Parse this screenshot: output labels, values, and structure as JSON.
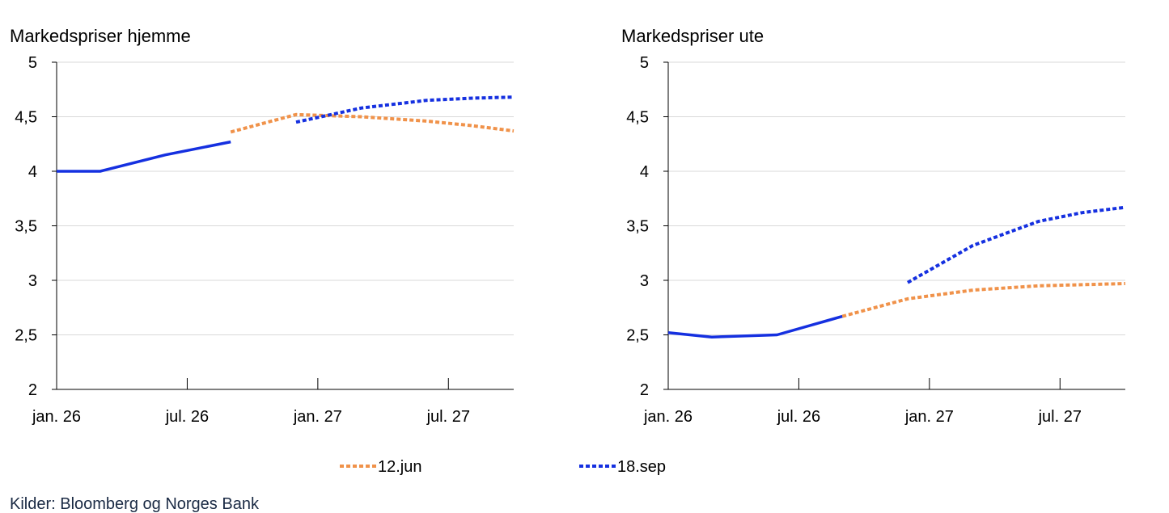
{
  "chart_data": [
    {
      "type": "line",
      "title": "Markedspriser hjemme",
      "x_ticks": [
        "jan. 26",
        "jul. 26",
        "jan. 27",
        "jul. 27"
      ],
      "y_ticks": [
        "5",
        "4,5",
        "4",
        "3,5",
        "3",
        "2,5",
        "2"
      ],
      "ylim": [
        2,
        5
      ],
      "xlim": [
        "2026-01",
        "2027-10"
      ],
      "grid": true,
      "series": [
        {
          "name": "",
          "style": "solid",
          "color": "#1530e0",
          "x": [
            "2026-01",
            "2026-03",
            "2026-06",
            "2026-09"
          ],
          "y": [
            4.0,
            4.0,
            4.15,
            4.27
          ]
        },
        {
          "name": "12.jun",
          "style": "dotted",
          "color": "#f0924a",
          "x": [
            "2026-09",
            "2026-12",
            "2027-03",
            "2027-06",
            "2027-08",
            "2027-10"
          ],
          "y": [
            4.36,
            4.52,
            4.5,
            4.46,
            4.42,
            4.37
          ]
        },
        {
          "name": "18.sep",
          "style": "dotted",
          "color": "#1530e0",
          "x": [
            "2026-12",
            "2027-03",
            "2027-06",
            "2027-08",
            "2027-10"
          ],
          "y": [
            4.45,
            4.58,
            4.65,
            4.67,
            4.68
          ]
        }
      ]
    },
    {
      "type": "line",
      "title": "Markedspriser ute",
      "x_ticks": [
        "jan. 26",
        "jul. 26",
        "jan. 27",
        "jul. 27"
      ],
      "y_ticks": [
        "5",
        "4,5",
        "4",
        "3,5",
        "3",
        "2,5",
        "2"
      ],
      "ylim": [
        2,
        5
      ],
      "xlim": [
        "2026-01",
        "2027-10"
      ],
      "grid": true,
      "series": [
        {
          "name": "",
          "style": "solid",
          "color": "#1530e0",
          "x": [
            "2026-01",
            "2026-03",
            "2026-06",
            "2026-09"
          ],
          "y": [
            2.52,
            2.48,
            2.5,
            2.67
          ]
        },
        {
          "name": "12.jun",
          "style": "dotted",
          "color": "#f0924a",
          "x": [
            "2026-09",
            "2026-12",
            "2027-03",
            "2027-06",
            "2027-08",
            "2027-10"
          ],
          "y": [
            2.67,
            2.83,
            2.91,
            2.95,
            2.96,
            2.97
          ]
        },
        {
          "name": "18.sep",
          "style": "dotted",
          "color": "#1530e0",
          "x": [
            "2026-12",
            "2027-03",
            "2027-06",
            "2027-08",
            "2027-10"
          ],
          "y": [
            2.98,
            3.32,
            3.54,
            3.62,
            3.67
          ]
        }
      ]
    }
  ],
  "legend": {
    "placement": "bottom-center",
    "items": [
      {
        "label": "12.jun",
        "color": "#f0924a",
        "style": "dotted"
      },
      {
        "label": "18.sep",
        "color": "#1530e0",
        "style": "dotted"
      }
    ]
  },
  "source": "Kilder: Bloomberg og Norges Bank"
}
